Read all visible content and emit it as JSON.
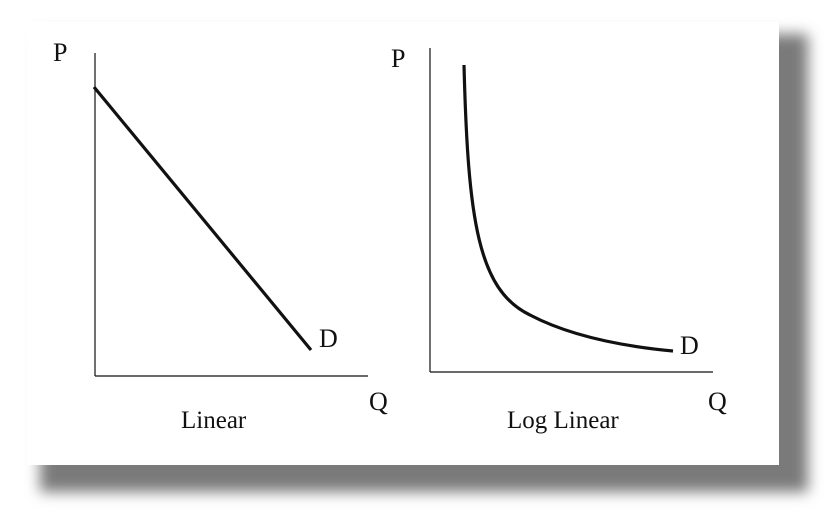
{
  "colors": {
    "background": "#ffffff",
    "card": "#ffffff",
    "shadow": "#808080",
    "ink": "#111111"
  },
  "panels": [
    {
      "id": "linear",
      "y_label": "P",
      "x_label": "Q",
      "curve_label": "D",
      "caption": "Linear"
    },
    {
      "id": "log-linear",
      "y_label": "P",
      "x_label": "Q",
      "curve_label": "D",
      "caption": "Log Linear"
    }
  ]
}
